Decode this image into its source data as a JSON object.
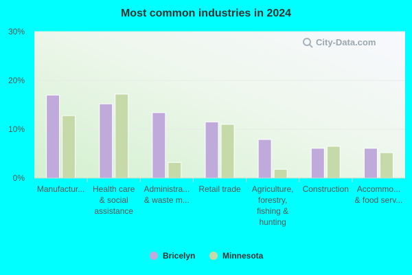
{
  "chart_data": {
    "type": "bar",
    "title": "Most common industries in 2024",
    "categories": [
      [
        "Manufactur..."
      ],
      [
        "Health care",
        "& social",
        "assistance"
      ],
      [
        "Administra...",
        "& waste m..."
      ],
      [
        "Retail trade"
      ],
      [
        "Agriculture,",
        "forestry,",
        "fishing &",
        "hunting"
      ],
      [
        "Construction"
      ],
      [
        "Accommo...",
        "& food serv..."
      ]
    ],
    "series": [
      {
        "name": "Bricelyn",
        "color": "#c0a9db",
        "values": [
          17.0,
          15.2,
          13.4,
          11.5,
          7.9,
          6.1,
          6.1
        ]
      },
      {
        "name": "Minnesota",
        "color": "#c6d9a8",
        "values": [
          12.8,
          17.2,
          3.2,
          11.0,
          1.8,
          6.5,
          5.2
        ]
      }
    ],
    "yticks": [
      "0%",
      "10%",
      "20%",
      "30%"
    ],
    "ylim": [
      0,
      30
    ],
    "legend_position": "bottom",
    "watermark": "City-Data.com"
  },
  "colors": {
    "background": "#00ffff",
    "gridline": "#e6ece6"
  }
}
